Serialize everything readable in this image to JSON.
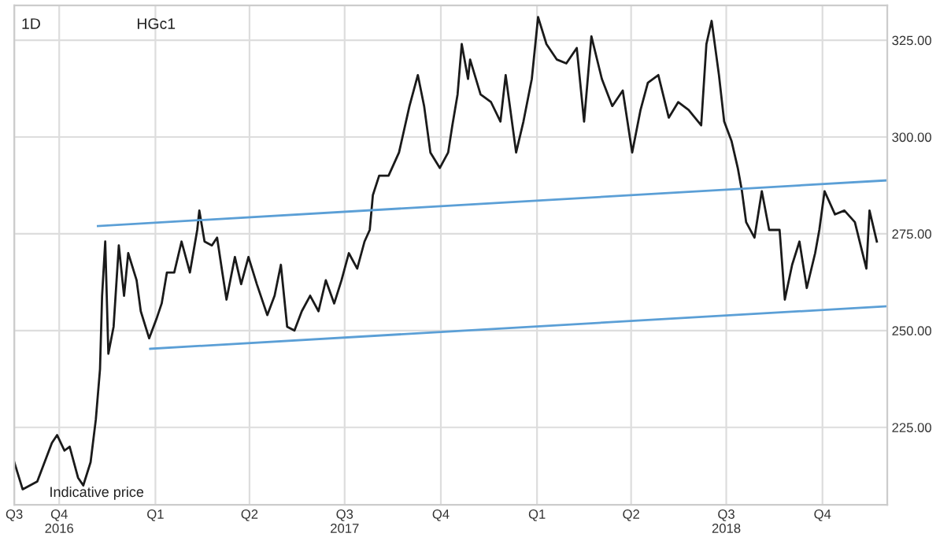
{
  "chart_data": {
    "type": "line",
    "annotations": [
      "1D",
      "HGc1",
      "Indicative price"
    ],
    "xlim": [
      "2016-08-19",
      "2018-12-02"
    ],
    "ylim": [
      205,
      334
    ],
    "yticks": [
      {
        "value": 225,
        "label": "225.00"
      },
      {
        "value": 250,
        "label": "250.00"
      },
      {
        "value": 275,
        "label": "275.00"
      },
      {
        "value": 300,
        "label": "300.00"
      },
      {
        "value": 325,
        "label": "325.00"
      }
    ],
    "xticks": [
      {
        "value": "2016-08-19",
        "label": "Q3"
      },
      {
        "value": "2016-10-01",
        "label": "Q4\n2016"
      },
      {
        "value": "2017-01-01",
        "label": "Q1"
      },
      {
        "value": "2017-04-01",
        "label": "Q2"
      },
      {
        "value": "2017-07-01",
        "label": "Q3\n2017"
      },
      {
        "value": "2017-10-01",
        "label": "Q4"
      },
      {
        "value": "2018-01-01",
        "label": "Q1"
      },
      {
        "value": "2018-04-01",
        "label": "Q2"
      },
      {
        "value": "2018-07-01",
        "label": "Q3\n2018"
      },
      {
        "value": "2018-10-01",
        "label": "Q4"
      }
    ],
    "grid": true,
    "legend": false,
    "series": [
      {
        "color": "#1a1a1a",
        "x": [
          "2016-08-19",
          "2016-08-27",
          "2016-09-10",
          "2016-09-17",
          "2016-09-24",
          "2016-09-29",
          "2016-10-06",
          "2016-10-11",
          "2016-10-19",
          "2016-10-24",
          "2016-10-31",
          "2016-11-05",
          "2016-11-09",
          "2016-11-11",
          "2016-11-14",
          "2016-11-17",
          "2016-11-22",
          "2016-11-27",
          "2016-12-02",
          "2016-12-06",
          "2016-12-14",
          "2016-12-18",
          "2016-12-26",
          "2017-01-02",
          "2017-01-07",
          "2017-01-12",
          "2017-01-19",
          "2017-01-26",
          "2017-02-03",
          "2017-02-10",
          "2017-02-12",
          "2017-02-17",
          "2017-02-24",
          "2017-03-01",
          "2017-03-06",
          "2017-03-10",
          "2017-03-18",
          "2017-03-24",
          "2017-03-31",
          "2017-04-08",
          "2017-04-18",
          "2017-04-25",
          "2017-05-01",
          "2017-05-07",
          "2017-05-14",
          "2017-05-21",
          "2017-05-29",
          "2017-06-06",
          "2017-06-13",
          "2017-06-21",
          "2017-06-28",
          "2017-07-05",
          "2017-07-13",
          "2017-07-20",
          "2017-07-25",
          "2017-07-28",
          "2017-08-03",
          "2017-08-12",
          "2017-08-22",
          "2017-09-01",
          "2017-09-09",
          "2017-09-15",
          "2017-09-21",
          "2017-09-30",
          "2017-10-08",
          "2017-10-12",
          "2017-10-17",
          "2017-10-21",
          "2017-10-27",
          "2017-10-29",
          "2017-11-08",
          "2017-11-18",
          "2017-11-27",
          "2017-12-02",
          "2017-12-12",
          "2017-12-19",
          "2017-12-27",
          "2018-01-02",
          "2018-01-10",
          "2018-01-20",
          "2018-01-29",
          "2018-02-08",
          "2018-02-15",
          "2018-02-22",
          "2018-03-04",
          "2018-03-14",
          "2018-03-24",
          "2018-04-02",
          "2018-04-10",
          "2018-04-17",
          "2018-04-27",
          "2018-05-07",
          "2018-05-16",
          "2018-05-26",
          "2018-06-07",
          "2018-06-12",
          "2018-06-17",
          "2018-06-24",
          "2018-06-29",
          "2018-07-06",
          "2018-07-12",
          "2018-07-16",
          "2018-07-20",
          "2018-07-28",
          "2018-08-04",
          "2018-08-11",
          "2018-08-21",
          "2018-08-26",
          "2018-09-02",
          "2018-09-09",
          "2018-09-16",
          "2018-09-24",
          "2018-09-28",
          "2018-10-03",
          "2018-10-13",
          "2018-10-22",
          "2018-11-01",
          "2018-11-12",
          "2018-11-15",
          "2018-11-22"
        ],
        "values": [
          216,
          209,
          211,
          216,
          221,
          223,
          219,
          220,
          212,
          210,
          216,
          227,
          240,
          259,
          273,
          244,
          251,
          272,
          259,
          270,
          263,
          255,
          248,
          253,
          257,
          265,
          265,
          273,
          265,
          276,
          281,
          273,
          272,
          274,
          265,
          258,
          269,
          262,
          269,
          262,
          254,
          259,
          267,
          251,
          250,
          255,
          259,
          255,
          263,
          257,
          263,
          270,
          266,
          273,
          276,
          285,
          290,
          290,
          296,
          308,
          316,
          308,
          296,
          292,
          296,
          303,
          311,
          324,
          315,
          320,
          311,
          309,
          304,
          316,
          296,
          304,
          315,
          331,
          324,
          320,
          319,
          323,
          304,
          326,
          315,
          308,
          312,
          296,
          307,
          314,
          316,
          305,
          309,
          307,
          303,
          324,
          330,
          316,
          304,
          299,
          292,
          286,
          278,
          274,
          286,
          276,
          276,
          258,
          267,
          273,
          261,
          270,
          276,
          286,
          280,
          281,
          278,
          266,
          281,
          273
        ]
      },
      {
        "color": "#5b9fd6",
        "x": [
          "2016-11-07",
          "2018-12-02"
        ],
        "values": [
          277,
          288.8
        ]
      },
      {
        "color": "#5b9fd6",
        "x": [
          "2016-12-27",
          "2018-12-02"
        ],
        "values": [
          245.3,
          256.3
        ]
      }
    ]
  }
}
